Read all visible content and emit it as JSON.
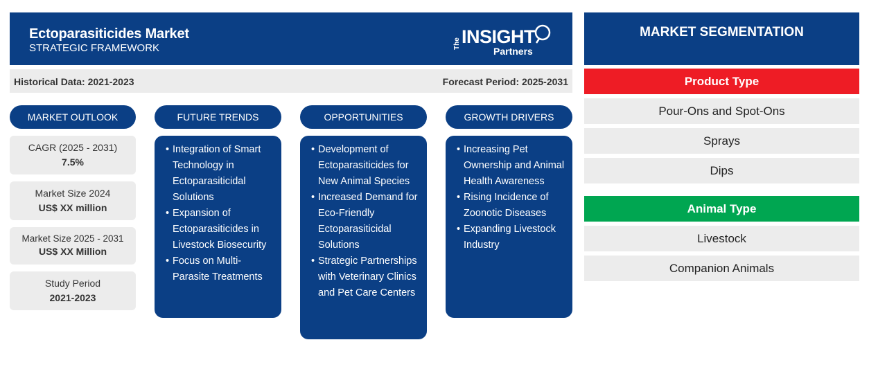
{
  "header": {
    "title": "Ectoparasiticides Market",
    "subtitle": "STRATEGIC FRAMEWORK",
    "logo": {
      "the": "The",
      "insight": "INSIGHT",
      "partners": "Partners"
    }
  },
  "period": {
    "historical": "Historical Data: 2021-2023",
    "forecast": "Forecast Period: 2025-2031"
  },
  "columns": {
    "outlook": "MARKET OUTLOOK",
    "trends": "FUTURE TRENDS",
    "opportunities": "OPPORTUNITIES",
    "drivers": "GROWTH DRIVERS"
  },
  "outlook": [
    {
      "label": "CAGR (2025 - 2031)",
      "value": "7.5%"
    },
    {
      "label": "Market Size 2024",
      "value": "US$ XX million"
    },
    {
      "label": "Market Size 2025 - 2031",
      "value": "US$ XX Million"
    },
    {
      "label": "Study Period",
      "value": "2021-2023"
    }
  ],
  "trends": [
    "Integration of Smart Technology in Ectoparasiticidal Solutions",
    "Expansion of Ectoparasiticides in Livestock Biosecurity",
    "Focus on Multi-Parasite Treatments"
  ],
  "opportunities": [
    "Development of Ectoparasiticides for New Animal Species",
    "Increased Demand for Eco-Friendly Ectoparasiticidal Solutions",
    "Strategic Partnerships with Veterinary Clinics and Pet Care Centers"
  ],
  "drivers": [
    "Increasing Pet Ownership and Animal Health Awareness",
    "Rising Incidence of Zoonotic Diseases",
    "Expanding Livestock Industry"
  ],
  "segmentation": {
    "title": "MARKET SEGMENTATION",
    "product_type": {
      "label": "Product Type",
      "color": "#ee1c25",
      "items": [
        "Pour-Ons and Spot-Ons",
        "Sprays",
        "Dips"
      ]
    },
    "animal_type": {
      "label": "Animal Type",
      "color": "#00a651",
      "items": [
        "Livestock",
        "Companion Animals"
      ]
    }
  },
  "colors": {
    "navy": "#0b3f85",
    "panel_gray": "#ececec"
  }
}
